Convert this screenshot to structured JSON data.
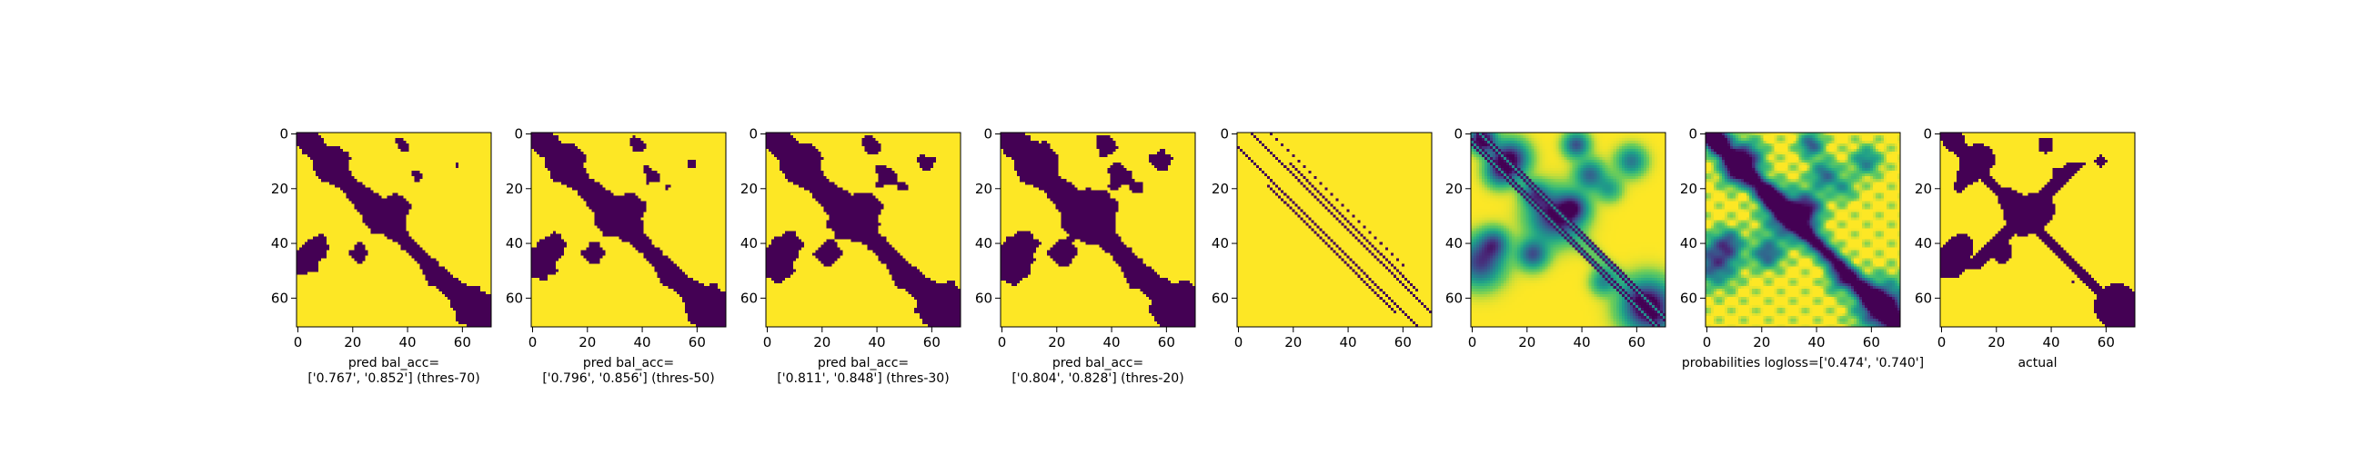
{
  "colors": {
    "background": "#fde725",
    "foreground": "#440154",
    "mid_teal": "#21918c",
    "light_green": "#addc30",
    "axis": "#000000"
  },
  "chart_data": [
    {
      "type": "heatmap",
      "variant": "binary-threshold",
      "pattern": "thr70",
      "xlim": [
        0,
        71
      ],
      "ylim": [
        71,
        0
      ],
      "xticks": [
        "0",
        "20",
        "40",
        "60"
      ],
      "yticks": [
        "0",
        "20",
        "40",
        "60"
      ],
      "xlabel_lines": [
        "pred bal_acc=",
        "['0.767', '0.852'] (thres-70)"
      ],
      "metric_values": [
        0.767,
        0.852
      ],
      "threshold": 70
    },
    {
      "type": "heatmap",
      "variant": "binary-threshold",
      "pattern": "thr50",
      "xlim": [
        0,
        71
      ],
      "ylim": [
        71,
        0
      ],
      "xticks": [
        "0",
        "20",
        "40",
        "60"
      ],
      "yticks": [
        "0",
        "20",
        "40",
        "60"
      ],
      "xlabel_lines": [
        "pred bal_acc=",
        "['0.796', '0.856'] (thres-50)"
      ],
      "metric_values": [
        0.796,
        0.856
      ],
      "threshold": 50
    },
    {
      "type": "heatmap",
      "variant": "binary-threshold",
      "pattern": "thr30",
      "xlim": [
        0,
        71
      ],
      "ylim": [
        71,
        0
      ],
      "xticks": [
        "0",
        "20",
        "40",
        "60"
      ],
      "yticks": [
        "0",
        "20",
        "40",
        "60"
      ],
      "xlabel_lines": [
        "pred bal_acc=",
        "['0.811', '0.848'] (thres-30)"
      ],
      "metric_values": [
        0.811,
        0.848
      ],
      "threshold": 30
    },
    {
      "type": "heatmap",
      "variant": "binary-threshold",
      "pattern": "thr20",
      "xlim": [
        0,
        71
      ],
      "ylim": [
        71,
        0
      ],
      "xticks": [
        "0",
        "20",
        "40",
        "60"
      ],
      "yticks": [
        "0",
        "20",
        "40",
        "60"
      ],
      "xlabel_lines": [
        "pred bal_acc=",
        "['0.804', '0.828'] (thres-20)"
      ],
      "metric_values": [
        0.804,
        0.828
      ],
      "threshold": 20
    },
    {
      "type": "heatmap",
      "variant": "sparse-diagonals",
      "pattern": "sparse",
      "xlim": [
        0,
        71
      ],
      "ylim": [
        71,
        0
      ],
      "xticks": [
        "0",
        "20",
        "40",
        "60"
      ],
      "yticks": [
        "0",
        "20",
        "40",
        "60"
      ],
      "xlabel_lines": []
    },
    {
      "type": "heatmap",
      "variant": "continuous",
      "pattern": "prob1",
      "xlim": [
        0,
        71
      ],
      "ylim": [
        71,
        0
      ],
      "xticks": [
        "0",
        "20",
        "40",
        "60"
      ],
      "yticks": [
        "0",
        "20",
        "40",
        "60"
      ],
      "xlabel_lines": []
    },
    {
      "type": "heatmap",
      "variant": "continuous",
      "pattern": "prob2",
      "xlim": [
        0,
        71
      ],
      "ylim": [
        71,
        0
      ],
      "xticks": [
        "0",
        "20",
        "40",
        "60"
      ],
      "yticks": [
        "0",
        "20",
        "40",
        "60"
      ],
      "xlabel_lines": [
        "probabilities logloss=['0.474', '0.740']"
      ],
      "metric_values": [
        0.474,
        0.74
      ]
    },
    {
      "type": "heatmap",
      "variant": "binary-actual",
      "pattern": "actual",
      "xlim": [
        0,
        71
      ],
      "ylim": [
        71,
        0
      ],
      "xticks": [
        "0",
        "20",
        "40",
        "60"
      ],
      "yticks": [
        "0",
        "20",
        "40",
        "60"
      ],
      "xlabel_lines": [
        "actual"
      ]
    }
  ]
}
